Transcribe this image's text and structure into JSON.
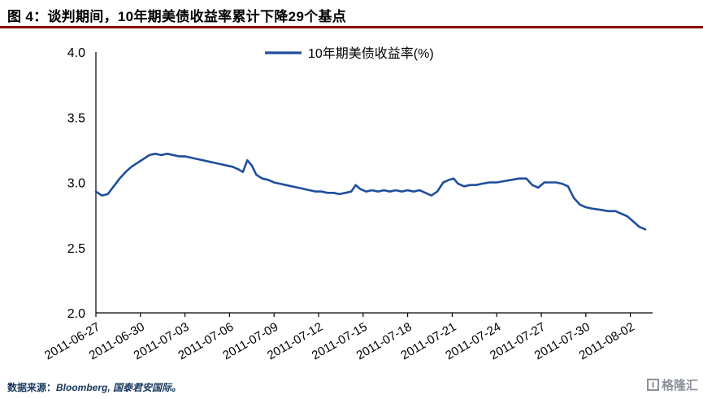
{
  "title": "图 4：谈判期间，10年期美债收益率累计下降29个基点",
  "accent_color": "#8B0000",
  "line_color": "#1F4E9C",
  "footer": {
    "label": "数据来源：",
    "source": "Bloomberg, 国泰君安国际。",
    "logo": "格隆汇"
  },
  "chart_data": {
    "type": "line",
    "title": "图 4：谈判期间，10年期美债收益率累计下降29个基点",
    "xlabel": "",
    "ylabel": "",
    "ylim": [
      2.0,
      4.0
    ],
    "xlim": [
      0,
      37.5
    ],
    "x_unit": "days since 2011-06-27",
    "grid": false,
    "legend_position": "top-center",
    "yticks": [
      2.0,
      2.5,
      3.0,
      3.5,
      4.0
    ],
    "xticks": [
      [
        0,
        "2011-06-27"
      ],
      [
        3,
        "2011-06-30"
      ],
      [
        6,
        "2011-07-03"
      ],
      [
        9,
        "2011-07-06"
      ],
      [
        12,
        "2011-07-09"
      ],
      [
        15,
        "2011-07-12"
      ],
      [
        18,
        "2011-07-15"
      ],
      [
        21,
        "2011-07-18"
      ],
      [
        24,
        "2011-07-21"
      ],
      [
        27,
        "2011-07-24"
      ],
      [
        30,
        "2011-07-27"
      ],
      [
        33,
        "2011-07-30"
      ],
      [
        36,
        "2011-08-02"
      ]
    ],
    "series": [
      {
        "name": "10年期美债收益率(%)",
        "color": "#1F4E9C",
        "points": [
          [
            0,
            2.93
          ],
          [
            0.4,
            2.9
          ],
          [
            0.8,
            2.91
          ],
          [
            1.2,
            2.97
          ],
          [
            1.6,
            3.03
          ],
          [
            2,
            3.08
          ],
          [
            2.4,
            3.12
          ],
          [
            2.8,
            3.15
          ],
          [
            3.2,
            3.18
          ],
          [
            3.6,
            3.21
          ],
          [
            4,
            3.22
          ],
          [
            4.4,
            3.21
          ],
          [
            4.8,
            3.22
          ],
          [
            5.2,
            3.21
          ],
          [
            5.6,
            3.2
          ],
          [
            6,
            3.2
          ],
          [
            6.4,
            3.19
          ],
          [
            6.8,
            3.18
          ],
          [
            7.2,
            3.17
          ],
          [
            7.6,
            3.16
          ],
          [
            8,
            3.15
          ],
          [
            8.4,
            3.14
          ],
          [
            8.8,
            3.13
          ],
          [
            9.2,
            3.12
          ],
          [
            9.6,
            3.1
          ],
          [
            9.9,
            3.08
          ],
          [
            10.2,
            3.17
          ],
          [
            10.5,
            3.13
          ],
          [
            10.8,
            3.06
          ],
          [
            11.2,
            3.03
          ],
          [
            11.6,
            3.02
          ],
          [
            12,
            3.0
          ],
          [
            12.4,
            2.99
          ],
          [
            12.8,
            2.98
          ],
          [
            13.2,
            2.97
          ],
          [
            13.6,
            2.96
          ],
          [
            14,
            2.95
          ],
          [
            14.4,
            2.94
          ],
          [
            14.8,
            2.93
          ],
          [
            15.2,
            2.93
          ],
          [
            15.6,
            2.92
          ],
          [
            16,
            2.92
          ],
          [
            16.4,
            2.91
          ],
          [
            16.8,
            2.92
          ],
          [
            17.2,
            2.93
          ],
          [
            17.5,
            2.98
          ],
          [
            17.8,
            2.95
          ],
          [
            18.2,
            2.93
          ],
          [
            18.6,
            2.94
          ],
          [
            19,
            2.93
          ],
          [
            19.4,
            2.94
          ],
          [
            19.8,
            2.93
          ],
          [
            20.2,
            2.94
          ],
          [
            20.6,
            2.93
          ],
          [
            21,
            2.94
          ],
          [
            21.4,
            2.93
          ],
          [
            21.8,
            2.94
          ],
          [
            22.2,
            2.92
          ],
          [
            22.6,
            2.9
          ],
          [
            23,
            2.93
          ],
          [
            23.4,
            3.0
          ],
          [
            23.8,
            3.02
          ],
          [
            24.1,
            3.03
          ],
          [
            24.4,
            2.99
          ],
          [
            24.8,
            2.97
          ],
          [
            25.2,
            2.98
          ],
          [
            25.6,
            2.98
          ],
          [
            26,
            2.99
          ],
          [
            26.5,
            3.0
          ],
          [
            27,
            3.0
          ],
          [
            27.5,
            3.01
          ],
          [
            28,
            3.02
          ],
          [
            28.5,
            3.03
          ],
          [
            29,
            3.03
          ],
          [
            29.4,
            2.98
          ],
          [
            29.8,
            2.96
          ],
          [
            30.2,
            3.0
          ],
          [
            30.6,
            3.0
          ],
          [
            31,
            3.0
          ],
          [
            31.4,
            2.99
          ],
          [
            31.8,
            2.97
          ],
          [
            32.2,
            2.88
          ],
          [
            32.6,
            2.83
          ],
          [
            33,
            2.81
          ],
          [
            33.4,
            2.8
          ],
          [
            34,
            2.79
          ],
          [
            34.5,
            2.78
          ],
          [
            35,
            2.78
          ],
          [
            35.4,
            2.76
          ],
          [
            35.8,
            2.74
          ],
          [
            36.2,
            2.7
          ],
          [
            36.6,
            2.66
          ],
          [
            37,
            2.64
          ]
        ]
      }
    ]
  }
}
